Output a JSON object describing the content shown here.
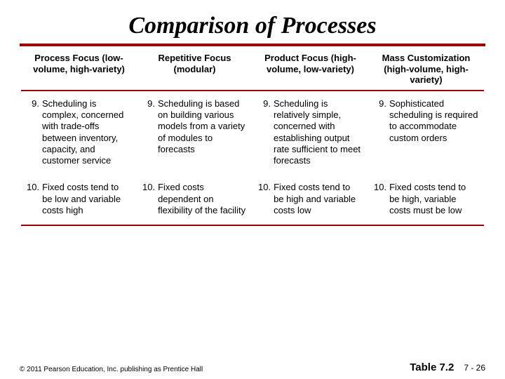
{
  "title": "Comparison of Processes",
  "columns": [
    {
      "heading": "Process Focus (low-volume, high-variety)"
    },
    {
      "heading": "Repetitive Focus (modular)"
    },
    {
      "heading": "Product Focus (high-volume, low-variety)"
    },
    {
      "heading": "Mass Customization (high-volume, high-variety)"
    }
  ],
  "rows": [
    {
      "cells": [
        {
          "num": "9.",
          "text": "Scheduling is complex, concerned with trade-offs between inventory, capacity, and customer service"
        },
        {
          "num": "9.",
          "text": "Scheduling is based on building various models from a variety of modules to forecasts"
        },
        {
          "num": "9.",
          "text": "Scheduling is relatively simple, concerned with establishing output rate sufficient to meet forecasts"
        },
        {
          "num": "9.",
          "text": "Sophisticated scheduling is required to accommodate custom orders"
        }
      ]
    },
    {
      "cells": [
        {
          "num": "10.",
          "text": "Fixed costs tend to be low and variable costs high"
        },
        {
          "num": "10.",
          "text": "Fixed costs dependent on flexibility of the facility"
        },
        {
          "num": "10.",
          "text": "Fixed costs tend to be high and variable costs low"
        },
        {
          "num": "10.",
          "text": "Fixed costs tend to be high, variable costs must be low"
        }
      ]
    }
  ],
  "footer": {
    "copyright": "© 2011 Pearson Education, Inc. publishing as Prentice Hall",
    "table_ref": "Table 7.2",
    "page": "7 - 26"
  },
  "colors": {
    "rule": "#9a0000",
    "background": "#ffffff",
    "text": "#000000"
  }
}
